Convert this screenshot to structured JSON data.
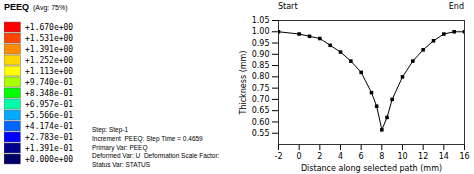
{
  "chart_data": [
    {
      "type": "color_legend",
      "title": "PEEQ",
      "subtitle": "(Avg: 75%)",
      "categories": [
        "+1.670e+00",
        "+1.531e+00",
        "+1.391e+00",
        "+1.252e+00",
        "+1.113e+00",
        "+9.740e-01",
        "+8.348e-01",
        "+6.957e-01",
        "+5.566e-01",
        "+4.174e-01",
        "+2.783e-01",
        "+1.391e-01",
        "+0.000e+00"
      ],
      "colors": [
        "#FF0000",
        "#FF4500",
        "#FF8C00",
        "#FFD700",
        "#FFFF00",
        "#AAFF00",
        "#00FF00",
        "#00FFAA",
        "#00AAFF",
        "#0066FF",
        "#0000FF",
        "#00008B",
        "#000066"
      ],
      "annotations": [
        "Step: Step-1",
        "Increment  PEEQ: Step Time = 0.4659",
        "Primary Var: PEEQ",
        "Deformed Var: U  Deformation Scale Factor:",
        "Status Var: STATUS"
      ]
    },
    {
      "type": "line",
      "xlabel": "Distance along selected path (mm)",
      "ylabel": "Thickness (mm)",
      "annotations": [
        "Start",
        "End"
      ],
      "x": [
        -2,
        0,
        1,
        2,
        3,
        4,
        5,
        6,
        7,
        7.5,
        8,
        8.5,
        9,
        10,
        11,
        12,
        13,
        14,
        15,
        16
      ],
      "series": [
        {
          "color": "#000000",
          "marker": "square",
          "line_style": "solid",
          "values": [
            1.0,
            0.99,
            0.98,
            0.97,
            0.94,
            0.91,
            0.87,
            0.82,
            0.73,
            0.67,
            0.565,
            0.62,
            0.7,
            0.8,
            0.87,
            0.92,
            0.96,
            0.99,
            1.0,
            1.0
          ]
        }
      ],
      "xlim": [
        -2,
        16
      ],
      "ylim": [
        0.5,
        1.05
      ],
      "xticks": [
        -2,
        0,
        2,
        4,
        6,
        8,
        10,
        12,
        14,
        16
      ],
      "yticks": [
        0.55,
        {
          "value": 0.6,
          "label": "0.60"
        },
        0.65,
        {
          "value": 0.7,
          "label": "0.70"
        },
        0.75,
        {
          "value": 0.8,
          "label": "0.80"
        },
        0.85,
        {
          "value": 0.9,
          "label": "0.90"
        },
        0.95,
        {
          "value": 1.0,
          "label": "1.00"
        },
        1.05
      ],
      "grid": false
    }
  ]
}
